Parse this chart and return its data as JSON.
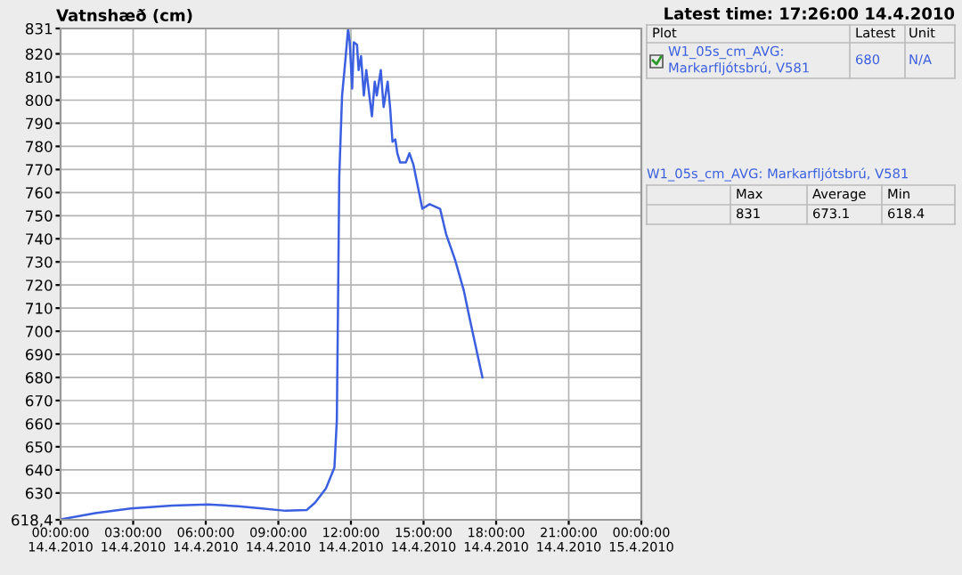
{
  "chart_data": {
    "type": "line",
    "ylabel": "Vatnshæð (cm)",
    "subtitle": "Latest time: 17:26:00 14.4.2010",
    "annotations": [
      "Plot",
      "Latest",
      "Unit",
      "680",
      "N/A",
      "Max",
      "Average",
      "Min",
      "831",
      "673.1",
      "618.4"
    ],
    "series": [
      {
        "name": "W1_05s_cm_AVG: Markarfljótsbrú, V581",
        "color": "#3a5fe0",
        "x": [
          "2010-04-14T00:00",
          "2010-04-14T00:04",
          "2010-04-14T01:26",
          "2010-04-14T02:54",
          "2010-04-14T04:37",
          "2010-04-14T06:06",
          "2010-04-14T07:20",
          "2010-04-14T08:19",
          "2010-04-14T09:18",
          "2010-04-14T10:10",
          "2010-04-14T10:31",
          "2010-04-14T10:58",
          "2010-04-14T11:19",
          "2010-04-14T11:25",
          "2010-04-14T11:28",
          "2010-04-14T11:31",
          "2010-04-14T11:34",
          "2010-04-14T11:38",
          "2010-04-14T11:45",
          "2010-04-14T11:53",
          "2010-04-14T11:57",
          "2010-04-14T12:03",
          "2010-04-14T12:07",
          "2010-04-14T12:15",
          "2010-04-14T12:19",
          "2010-04-14T12:25",
          "2010-04-14T12:32",
          "2010-04-14T12:38",
          "2010-04-14T12:47",
          "2010-04-14T12:52",
          "2010-04-14T12:59",
          "2010-04-14T13:04",
          "2010-04-14T13:14",
          "2010-04-14T13:21",
          "2010-04-14T13:31",
          "2010-04-14T13:37",
          "2010-04-14T13:43",
          "2010-04-14T13:50",
          "2010-04-14T13:55",
          "2010-04-14T14:02",
          "2010-04-14T14:16",
          "2010-04-14T14:25",
          "2010-04-14T14:35",
          "2010-04-14T14:57",
          "2010-04-14T15:15",
          "2010-04-14T15:41",
          "2010-04-14T15:56",
          "2010-04-14T16:18",
          "2010-04-14T16:40",
          "2010-04-14T16:55",
          "2010-04-14T17:26"
        ],
        "values": [
          618.4,
          618.7,
          621.3,
          623.3,
          624.6,
          625,
          624.3,
          623.3,
          622.3,
          622.6,
          625.8,
          632,
          641,
          661.5,
          712,
          766.7,
          782,
          802,
          815,
          831,
          825,
          805,
          825,
          824,
          813,
          819,
          802,
          813,
          800,
          793,
          808,
          802,
          813,
          797,
          808,
          797,
          782,
          783,
          777,
          773,
          773,
          777,
          772,
          753,
          755,
          753,
          742,
          731,
          717.5,
          705,
          680
        ]
      }
    ],
    "xlim": [
      "2010-04-14T00:00",
      "2010-04-15T00:00"
    ],
    "xticks": [
      {
        "value": "2010-04-14T00:00",
        "label": "00:00:00\n14.4.2010"
      },
      {
        "value": "2010-04-14T03:00",
        "label": "03:00:00\n14.4.2010"
      },
      {
        "value": "2010-04-14T06:00",
        "label": "06:00:00\n14.4.2010"
      },
      {
        "value": "2010-04-14T09:00",
        "label": "09:00:00\n14.4.2010"
      },
      {
        "value": "2010-04-14T12:00",
        "label": "12:00:00\n14.4.2010"
      },
      {
        "value": "2010-04-14T15:00",
        "label": "15:00:00\n14.4.2010"
      },
      {
        "value": "2010-04-14T18:00",
        "label": "18:00:00\n14.4.2010"
      },
      {
        "value": "2010-04-14T21:00",
        "label": "21:00:00\n14.4.2010"
      },
      {
        "value": "2010-04-15T00:00",
        "label": "00:00:00\n15.4.2010"
      }
    ],
    "ylim": [
      618.4,
      831
    ],
    "yticks": [
      {
        "value": 618.4,
        "label": "618,4"
      },
      630,
      640,
      650,
      660,
      670,
      680,
      690,
      700,
      710,
      720,
      730,
      740,
      750,
      760,
      770,
      780,
      790,
      800,
      810,
      820,
      831
    ],
    "grid": true,
    "marker": "none",
    "line_style": "solid"
  }
}
